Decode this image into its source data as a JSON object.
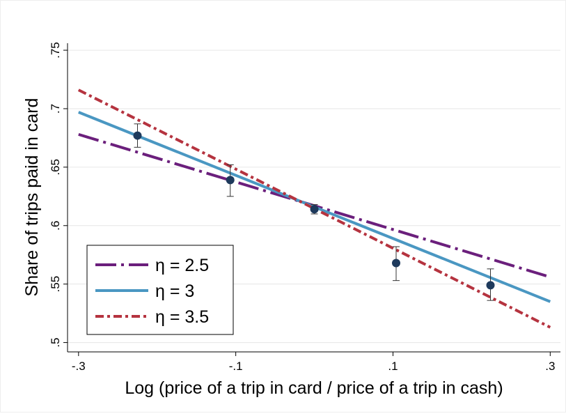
{
  "chart_data": {
    "type": "line",
    "x_label": "Log (price of a trip in card / price of a trip in cash)",
    "y_label": "Share of trips paid in card",
    "xlim": [
      -0.314,
      0.313
    ],
    "ylim": [
      0.492,
      0.756
    ],
    "xticks": [
      {
        "value": -0.3,
        "label": "-.3"
      },
      {
        "value": -0.1,
        "label": "-.1"
      },
      {
        "value": 0.1,
        "label": ".1"
      },
      {
        "value": 0.3,
        "label": ".3"
      }
    ],
    "yticks": [
      {
        "value": 0.5,
        "label": ".5"
      },
      {
        "value": 0.55,
        "label": ".55"
      },
      {
        "value": 0.6,
        "label": ".6"
      },
      {
        "value": 0.65,
        "label": ".65"
      },
      {
        "value": 0.7,
        "label": ".7"
      },
      {
        "value": 0.75,
        "label": ".75"
      }
    ],
    "grid": true,
    "legend_position": "lower left",
    "series": [
      {
        "name": "η = 2.5",
        "color": "#6b1f7c",
        "linestyle": "longdash-dot",
        "x": [
          -0.3,
          0.3
        ],
        "values": [
          0.678,
          0.556
        ]
      },
      {
        "name": "η = 3",
        "color": "#4a97c2",
        "linestyle": "solid",
        "x": [
          -0.3,
          0.3
        ],
        "values": [
          0.697,
          0.535
        ]
      },
      {
        "name": "η = 3.5",
        "color": "#b5333f",
        "linestyle": "dash-dot",
        "x": [
          -0.3,
          0.3
        ],
        "values": [
          0.716,
          0.513
        ]
      }
    ],
    "points": {
      "color": "#1e3a5c",
      "x": [
        -0.225,
        -0.107,
        0.0,
        0.104,
        0.224
      ],
      "y": [
        0.677,
        0.639,
        0.614,
        0.568,
        0.549
      ],
      "ci_low": [
        0.667,
        0.625,
        0.61,
        0.553,
        0.536
      ],
      "ci_high": [
        0.687,
        0.652,
        0.618,
        0.582,
        0.563
      ]
    }
  }
}
